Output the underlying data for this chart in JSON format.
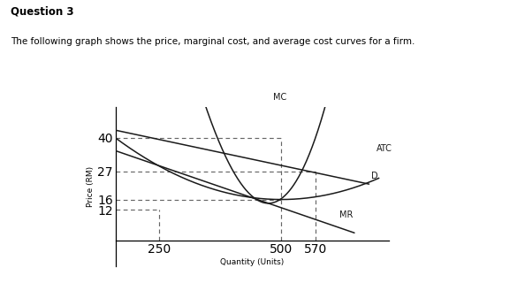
{
  "title": "Question 3",
  "subtitle": "The following graph shows the price, marginal cost, and average cost curves for a firm.",
  "xlabel": "Quantity (Units)",
  "ylabel": "Price (RM)",
  "x_ticks": [
    250,
    500,
    570
  ],
  "y_ticks": [
    12,
    16,
    27,
    40
  ],
  "x_min": 160,
  "x_max": 720,
  "y_min": -10,
  "y_max": 52,
  "curve_color": "#1a1a1a",
  "dashed_color": "#666666",
  "background": "#ffffff",
  "label_MC": "MC",
  "label_ATC": "ATC",
  "label_D": "D",
  "label_MR": "MR",
  "figwidth": 5.94,
  "figheight": 3.46,
  "dpi": 100
}
